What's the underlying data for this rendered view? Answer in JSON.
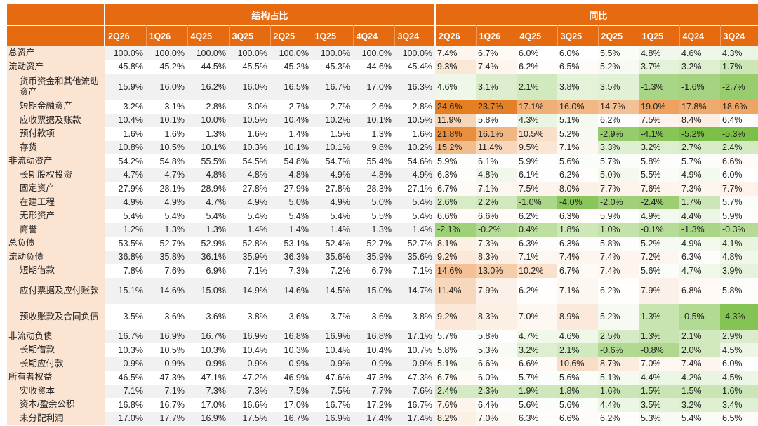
{
  "header": {
    "group_struct": "结构占比",
    "group_yoy": "同比",
    "periods": [
      "2Q26",
      "1Q26",
      "4Q25",
      "3Q25",
      "2Q25",
      "1Q25",
      "4Q24",
      "3Q24"
    ]
  },
  "rows": [
    {
      "label": "总资产",
      "level": 0,
      "struct": [
        "100.0%",
        "100.0%",
        "100.0%",
        "100.0%",
        "100.0%",
        "100.0%",
        "100.0%",
        "100.0%"
      ],
      "yoy": [
        "7.4%",
        "6.7%",
        "6.0%",
        "6.0%",
        "5.5%",
        "4.8%",
        "4.6%",
        "4.3%"
      ]
    },
    {
      "label": "流动资产",
      "level": 0,
      "struct": [
        "45.8%",
        "45.2%",
        "44.5%",
        "45.5%",
        "45.2%",
        "45.3%",
        "44.6%",
        "45.4%"
      ],
      "yoy": [
        "9.3%",
        "7.4%",
        "6.2%",
        "6.5%",
        "5.2%",
        "3.7%",
        "3.2%",
        "1.7%"
      ]
    },
    {
      "label": "货币资金和其他流动资产",
      "level": 1,
      "tall": true,
      "struct": [
        "15.9%",
        "16.0%",
        "16.2%",
        "16.0%",
        "16.5%",
        "16.7%",
        "17.0%",
        "16.3%"
      ],
      "yoy": [
        "4.6%",
        "3.1%",
        "2.1%",
        "3.8%",
        "3.5%",
        "-1.3%",
        "-1.6%",
        "-2.7%"
      ]
    },
    {
      "label": "短期金融资产",
      "level": 1,
      "struct": [
        "3.2%",
        "3.1%",
        "2.8%",
        "3.0%",
        "2.7%",
        "2.7%",
        "2.6%",
        "2.8%"
      ],
      "yoy": [
        "24.6%",
        "23.7%",
        "17.1%",
        "16.0%",
        "14.7%",
        "19.0%",
        "17.8%",
        "18.6%"
      ]
    },
    {
      "label": "应收票据及账款",
      "level": 1,
      "struct": [
        "10.4%",
        "10.1%",
        "10.0%",
        "10.5%",
        "10.4%",
        "10.2%",
        "10.1%",
        "10.5%"
      ],
      "yoy": [
        "11.9%",
        "5.8%",
        "4.3%",
        "5.1%",
        "6.2%",
        "7.5%",
        "8.4%",
        "6.4%"
      ]
    },
    {
      "label": "预付款项",
      "level": 1,
      "struct": [
        "1.6%",
        "1.6%",
        "1.3%",
        "1.6%",
        "1.4%",
        "1.5%",
        "1.3%",
        "1.6%"
      ],
      "yoy": [
        "21.8%",
        "16.1%",
        "10.5%",
        "5.2%",
        "-2.9%",
        "-4.1%",
        "-5.2%",
        "-5.3%"
      ]
    },
    {
      "label": "存货",
      "level": 1,
      "struct": [
        "10.8%",
        "10.5%",
        "10.1%",
        "10.3%",
        "10.1%",
        "10.1%",
        "9.8%",
        "10.2%"
      ],
      "yoy": [
        "15.2%",
        "11.4%",
        "9.5%",
        "7.1%",
        "3.3%",
        "3.2%",
        "2.7%",
        "2.4%"
      ]
    },
    {
      "label": "非流动资产",
      "level": 0,
      "struct": [
        "54.2%",
        "54.8%",
        "55.5%",
        "54.5%",
        "54.8%",
        "54.7%",
        "55.4%",
        "54.6%"
      ],
      "yoy": [
        "5.9%",
        "6.1%",
        "5.9%",
        "5.6%",
        "5.7%",
        "5.8%",
        "5.7%",
        "6.6%"
      ]
    },
    {
      "label": "长期股权投资",
      "level": 1,
      "struct": [
        "4.7%",
        "4.7%",
        "4.8%",
        "4.8%",
        "4.8%",
        "4.9%",
        "4.8%",
        "4.9%"
      ],
      "yoy": [
        "6.3%",
        "4.8%",
        "6.1%",
        "6.2%",
        "5.0%",
        "5.5%",
        "4.9%",
        "6.0%"
      ]
    },
    {
      "label": "固定资产",
      "level": 1,
      "struct": [
        "27.9%",
        "28.1%",
        "28.9%",
        "27.8%",
        "27.9%",
        "27.8%",
        "28.3%",
        "27.1%"
      ],
      "yoy": [
        "6.7%",
        "7.1%",
        "7.5%",
        "8.0%",
        "7.7%",
        "7.6%",
        "7.3%",
        "7.7%"
      ]
    },
    {
      "label": "在建工程",
      "level": 1,
      "struct": [
        "4.9%",
        "4.9%",
        "4.7%",
        "4.9%",
        "5.0%",
        "4.9%",
        "5.0%",
        "5.4%"
      ],
      "yoy": [
        "2.6%",
        "2.2%",
        "-1.0%",
        "-4.0%",
        "-2.0%",
        "-2.4%",
        "1.7%",
        "5.7%"
      ]
    },
    {
      "label": "无形资产",
      "level": 1,
      "struct": [
        "5.4%",
        "5.4%",
        "5.4%",
        "5.4%",
        "5.4%",
        "5.4%",
        "5.5%",
        "5.4%"
      ],
      "yoy": [
        "6.6%",
        "6.6%",
        "6.2%",
        "6.3%",
        "5.9%",
        "4.9%",
        "4.4%",
        "5.9%"
      ]
    },
    {
      "label": "商誉",
      "level": 1,
      "struct": [
        "1.2%",
        "1.3%",
        "1.3%",
        "1.4%",
        "1.4%",
        "1.4%",
        "1.3%",
        "1.4%"
      ],
      "yoy": [
        "-2.1%",
        "-0.2%",
        "0.4%",
        "1.8%",
        "1.0%",
        "-0.1%",
        "-1.3%",
        "-0.3%"
      ]
    },
    {
      "label": "总负债",
      "level": 0,
      "struct": [
        "53.5%",
        "52.7%",
        "52.9%",
        "52.8%",
        "53.1%",
        "52.4%",
        "52.7%",
        "52.7%"
      ],
      "yoy": [
        "8.1%",
        "7.3%",
        "6.3%",
        "6.3%",
        "5.8%",
        "5.2%",
        "4.9%",
        "4.1%"
      ]
    },
    {
      "label": "流动负债",
      "level": 0,
      "struct": [
        "36.8%",
        "35.8%",
        "36.1%",
        "35.9%",
        "36.3%",
        "35.6%",
        "35.9%",
        "35.6%"
      ],
      "yoy": [
        "9.2%",
        "8.3%",
        "7.1%",
        "7.4%",
        "7.4%",
        "7.2%",
        "6.3%",
        "4.8%"
      ]
    },
    {
      "label": "短期借款",
      "level": 1,
      "struct": [
        "7.8%",
        "7.6%",
        "6.9%",
        "7.1%",
        "7.3%",
        "7.2%",
        "6.7%",
        "7.1%"
      ],
      "yoy": [
        "14.6%",
        "13.0%",
        "10.2%",
        "6.7%",
        "7.4%",
        "5.6%",
        "4.7%",
        "3.9%"
      ]
    },
    {
      "label": "应付票据及应付账款",
      "level": 1,
      "tall": true,
      "struct": [
        "15.1%",
        "14.6%",
        "15.0%",
        "14.9%",
        "14.6%",
        "14.5%",
        "15.0%",
        "14.7%"
      ],
      "yoy": [
        "11.4%",
        "7.9%",
        "6.2%",
        "7.1%",
        "6.2%",
        "7.9%",
        "6.8%",
        "5.8%"
      ]
    },
    {
      "label": "预收账款及合同负债",
      "level": 1,
      "tall": true,
      "struct": [
        "3.5%",
        "3.6%",
        "3.6%",
        "3.8%",
        "3.6%",
        "3.7%",
        "3.6%",
        "3.8%"
      ],
      "yoy": [
        "9.2%",
        "8.3%",
        "7.0%",
        "8.9%",
        "5.2%",
        "1.3%",
        "-0.5%",
        "-4.3%"
      ]
    },
    {
      "label": "非流动负债",
      "level": 0,
      "struct": [
        "16.7%",
        "16.9%",
        "16.7%",
        "16.9%",
        "16.8%",
        "16.9%",
        "16.8%",
        "17.1%"
      ],
      "yoy": [
        "5.7%",
        "5.8%",
        "4.7%",
        "4.6%",
        "2.5%",
        "1.3%",
        "2.1%",
        "2.9%"
      ]
    },
    {
      "label": "长期借款",
      "level": 1,
      "struct": [
        "10.3%",
        "10.5%",
        "10.3%",
        "10.4%",
        "10.3%",
        "10.4%",
        "10.4%",
        "10.7%"
      ],
      "yoy": [
        "5.8%",
        "5.3%",
        "3.2%",
        "2.1%",
        "-0.6%",
        "-0.8%",
        "2.0%",
        "4.5%"
      ]
    },
    {
      "label": "长期应付款",
      "level": 1,
      "struct": [
        "0.9%",
        "0.9%",
        "0.9%",
        "0.9%",
        "0.9%",
        "0.9%",
        "0.9%",
        "0.9%"
      ],
      "yoy": [
        "5.1%",
        "6.6%",
        "6.6%",
        "10.6%",
        "8.7%",
        "7.0%",
        "7.4%",
        "6.0%"
      ]
    },
    {
      "label": "所有者权益",
      "level": 0,
      "struct": [
        "46.5%",
        "47.3%",
        "47.1%",
        "47.2%",
        "46.9%",
        "47.6%",
        "47.3%",
        "47.3%"
      ],
      "yoy": [
        "6.7%",
        "6.0%",
        "5.7%",
        "5.6%",
        "5.1%",
        "4.4%",
        "4.2%",
        "4.5%"
      ]
    },
    {
      "label": "实收资本",
      "level": 1,
      "struct": [
        "7.1%",
        "7.1%",
        "7.3%",
        "7.3%",
        "7.5%",
        "7.5%",
        "7.7%",
        "7.6%"
      ],
      "yoy": [
        "2.4%",
        "2.3%",
        "1.9%",
        "1.8%",
        "1.6%",
        "1.5%",
        "1.5%",
        "1.6%"
      ]
    },
    {
      "label": "资本/盈余公积",
      "level": 1,
      "struct": [
        "16.8%",
        "16.7%",
        "17.0%",
        "16.6%",
        "17.0%",
        "16.7%",
        "17.2%",
        "16.7%"
      ],
      "yoy": [
        "7.6%",
        "6.4%",
        "5.6%",
        "5.6%",
        "4.4%",
        "3.5%",
        "3.2%",
        "3.4%"
      ]
    },
    {
      "label": "未分配利润",
      "level": 1,
      "struct": [
        "17.0%",
        "17.7%",
        "16.9%",
        "17.5%",
        "16.7%",
        "16.9%",
        "17.4%",
        "17.4%"
      ],
      "yoy": [
        "8.2%",
        "7.0%",
        "6.3%",
        "6.6%",
        "6.2%",
        "5.3%",
        "5.4%",
        "6.5%"
      ]
    }
  ],
  "heatmap_colors": {
    "high": "#E67E22",
    "mid": "#FFFFFF",
    "low": "#7DC048"
  }
}
